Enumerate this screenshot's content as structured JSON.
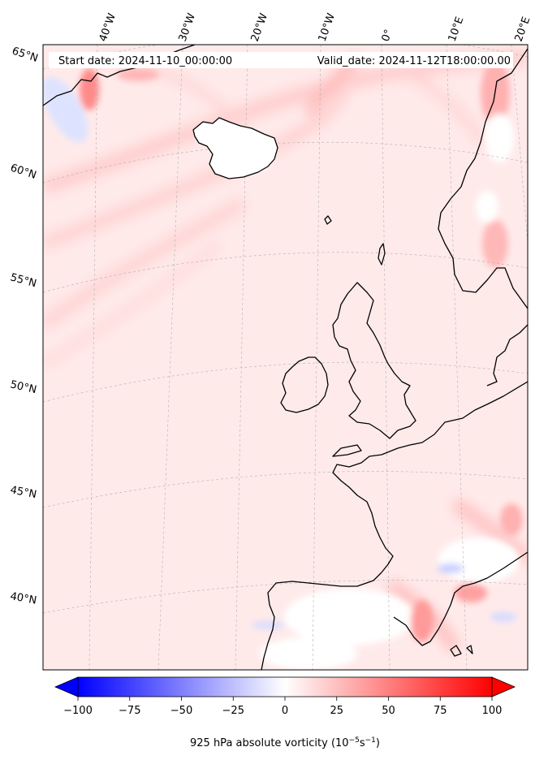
{
  "header": {
    "start_date": "Start date: 2024-11-10_00:00:00",
    "valid_date": "Valid_date: 2024-11-12T18:00:00.00"
  },
  "longitude_labels": [
    "40°W",
    "30°W",
    "20°W",
    "10°W",
    "0°",
    "10°E",
    "20°E"
  ],
  "latitude_labels": [
    "65°N",
    "60°N",
    "55°N",
    "50°N",
    "45°N",
    "40°N"
  ],
  "colorbar": {
    "ticks": [
      "−100",
      "−75",
      "−50",
      "−25",
      "0",
      "25",
      "50",
      "75",
      "100"
    ],
    "label_main": "925 hPa absolute vorticity (10",
    "label_exp1": "−5",
    "label_mid": "s",
    "label_exp2": "−1",
    "label_end": ")",
    "cmap": "bwr",
    "min": -100,
    "max": 100,
    "extend": "both"
  },
  "colors": {
    "neg_max": "#0000ff",
    "zero": "#ffffff",
    "pos_max": "#ff0000",
    "background_field": "#ffe8e8"
  }
}
